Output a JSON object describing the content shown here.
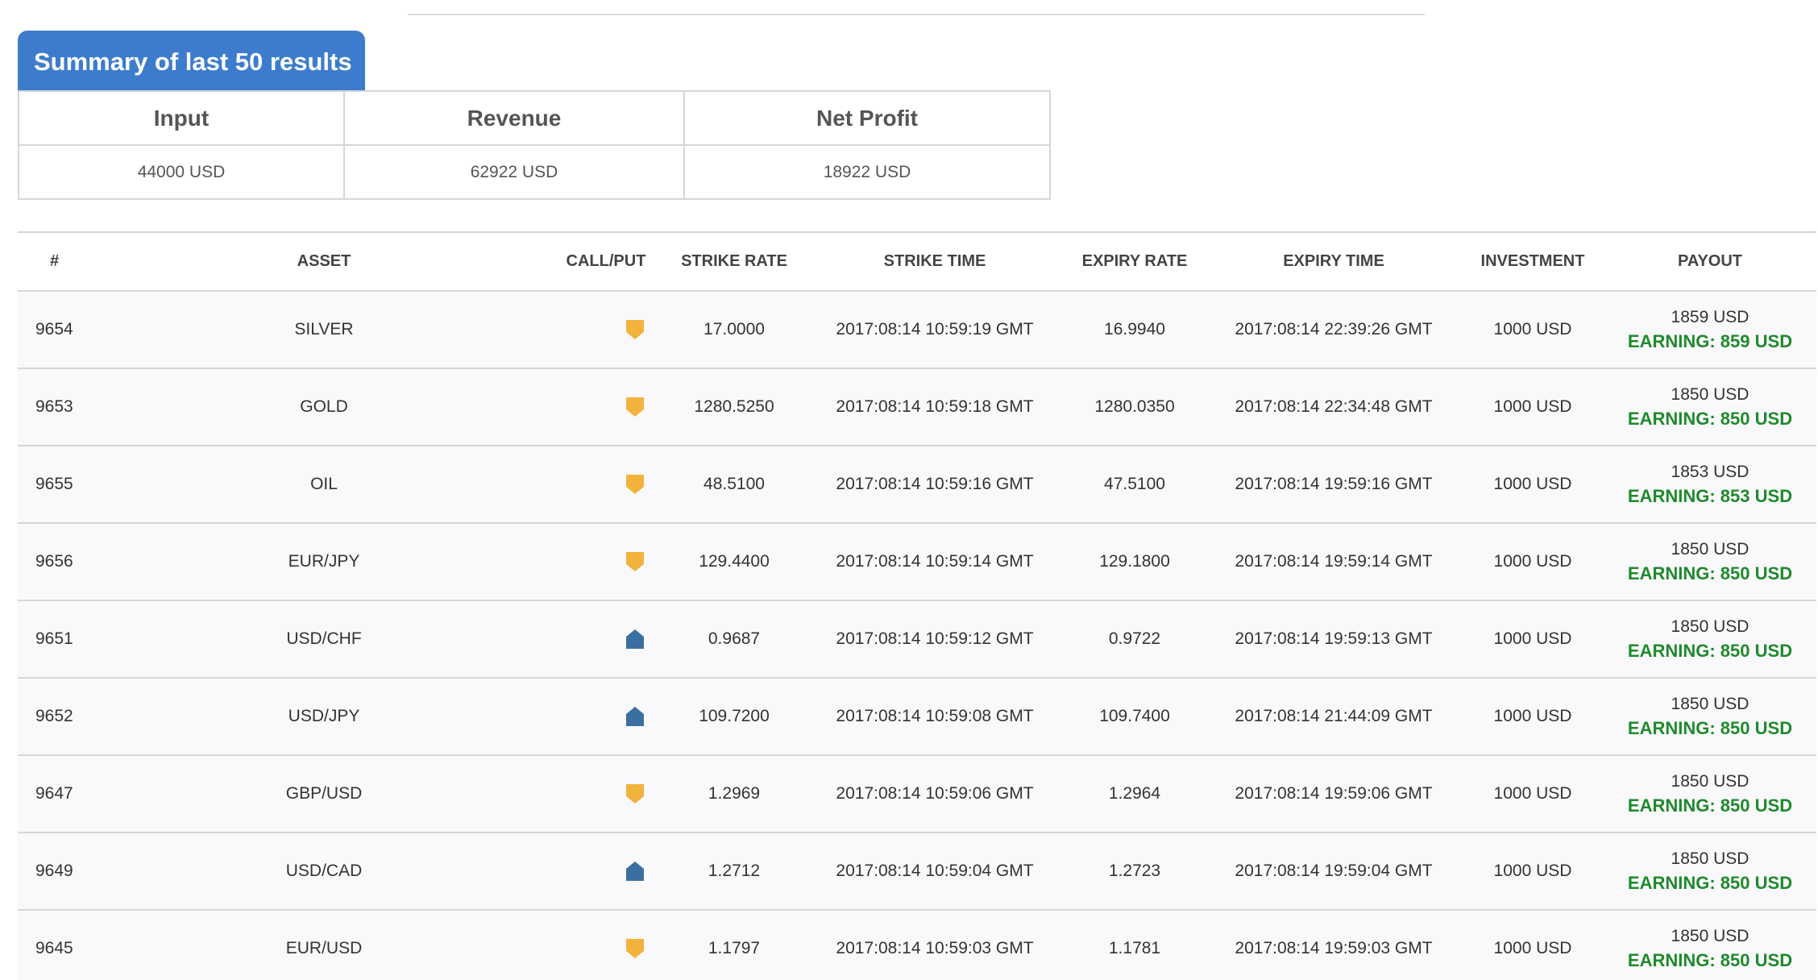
{
  "summary": {
    "title": "Summary of last 50 results",
    "headers": [
      "Input",
      "Revenue",
      "Net Profit"
    ],
    "values": [
      "44000 USD",
      "62922 USD",
      "18922 USD"
    ]
  },
  "results": {
    "headers": [
      "#",
      "ASSET",
      "CALL/PUT",
      "STRIKE RATE",
      "STRIKE TIME",
      "EXPIRY RATE",
      "EXPIRY TIME",
      "INVESTMENT",
      "PAYOUT"
    ],
    "rows": [
      {
        "id": "9654",
        "asset": "SILVER",
        "direction": "put",
        "direction_icon": "arrow-down-icon",
        "strike_rate": "17.0000",
        "strike_time": "2017:08:14 10:59:19 GMT",
        "expiry_rate": "16.9940",
        "expiry_time": "2017:08:14 22:39:26 GMT",
        "investment": "1000 USD",
        "payout": "1859 USD",
        "earning": "EARNING: 859 USD"
      },
      {
        "id": "9653",
        "asset": "GOLD",
        "direction": "put",
        "direction_icon": "arrow-down-icon",
        "strike_rate": "1280.5250",
        "strike_time": "2017:08:14 10:59:18 GMT",
        "expiry_rate": "1280.0350",
        "expiry_time": "2017:08:14 22:34:48 GMT",
        "investment": "1000 USD",
        "payout": "1850 USD",
        "earning": "EARNING: 850 USD"
      },
      {
        "id": "9655",
        "asset": "OIL",
        "direction": "put",
        "direction_icon": "arrow-down-icon",
        "strike_rate": "48.5100",
        "strike_time": "2017:08:14 10:59:16 GMT",
        "expiry_rate": "47.5100",
        "expiry_time": "2017:08:14 19:59:16 GMT",
        "investment": "1000 USD",
        "payout": "1853 USD",
        "earning": "EARNING: 853 USD"
      },
      {
        "id": "9656",
        "asset": "EUR/JPY",
        "direction": "put",
        "direction_icon": "arrow-down-icon",
        "strike_rate": "129.4400",
        "strike_time": "2017:08:14 10:59:14 GMT",
        "expiry_rate": "129.1800",
        "expiry_time": "2017:08:14 19:59:14 GMT",
        "investment": "1000 USD",
        "payout": "1850 USD",
        "earning": "EARNING: 850 USD"
      },
      {
        "id": "9651",
        "asset": "USD/CHF",
        "direction": "call",
        "direction_icon": "arrow-up-icon",
        "strike_rate": "0.9687",
        "strike_time": "2017:08:14 10:59:12 GMT",
        "expiry_rate": "0.9722",
        "expiry_time": "2017:08:14 19:59:13 GMT",
        "investment": "1000 USD",
        "payout": "1850 USD",
        "earning": "EARNING: 850 USD"
      },
      {
        "id": "9652",
        "asset": "USD/JPY",
        "direction": "call",
        "direction_icon": "arrow-up-icon",
        "strike_rate": "109.7200",
        "strike_time": "2017:08:14 10:59:08 GMT",
        "expiry_rate": "109.7400",
        "expiry_time": "2017:08:14 21:44:09 GMT",
        "investment": "1000 USD",
        "payout": "1850 USD",
        "earning": "EARNING: 850 USD"
      },
      {
        "id": "9647",
        "asset": "GBP/USD",
        "direction": "put",
        "direction_icon": "arrow-down-icon",
        "strike_rate": "1.2969",
        "strike_time": "2017:08:14 10:59:06 GMT",
        "expiry_rate": "1.2964",
        "expiry_time": "2017:08:14 19:59:06 GMT",
        "investment": "1000 USD",
        "payout": "1850 USD",
        "earning": "EARNING: 850 USD"
      },
      {
        "id": "9649",
        "asset": "USD/CAD",
        "direction": "call",
        "direction_icon": "arrow-up-icon",
        "strike_rate": "1.2712",
        "strike_time": "2017:08:14 10:59:04 GMT",
        "expiry_rate": "1.2723",
        "expiry_time": "2017:08:14 19:59:04 GMT",
        "investment": "1000 USD",
        "payout": "1850 USD",
        "earning": "EARNING: 850 USD"
      },
      {
        "id": "9645",
        "asset": "EUR/USD",
        "direction": "put",
        "direction_icon": "arrow-down-icon",
        "strike_rate": "1.1797",
        "strike_time": "2017:08:14 10:59:03 GMT",
        "expiry_rate": "1.1781",
        "expiry_time": "2017:08:14 19:59:03 GMT",
        "investment": "1000 USD",
        "payout": "1850 USD",
        "earning": "EARNING: 850 USD"
      }
    ]
  },
  "colors": {
    "tab_blue": "#3d7ccc",
    "put_icon": "#f2b33d",
    "call_icon": "#3a6fa0",
    "earning_green": "#1f8a2c"
  }
}
